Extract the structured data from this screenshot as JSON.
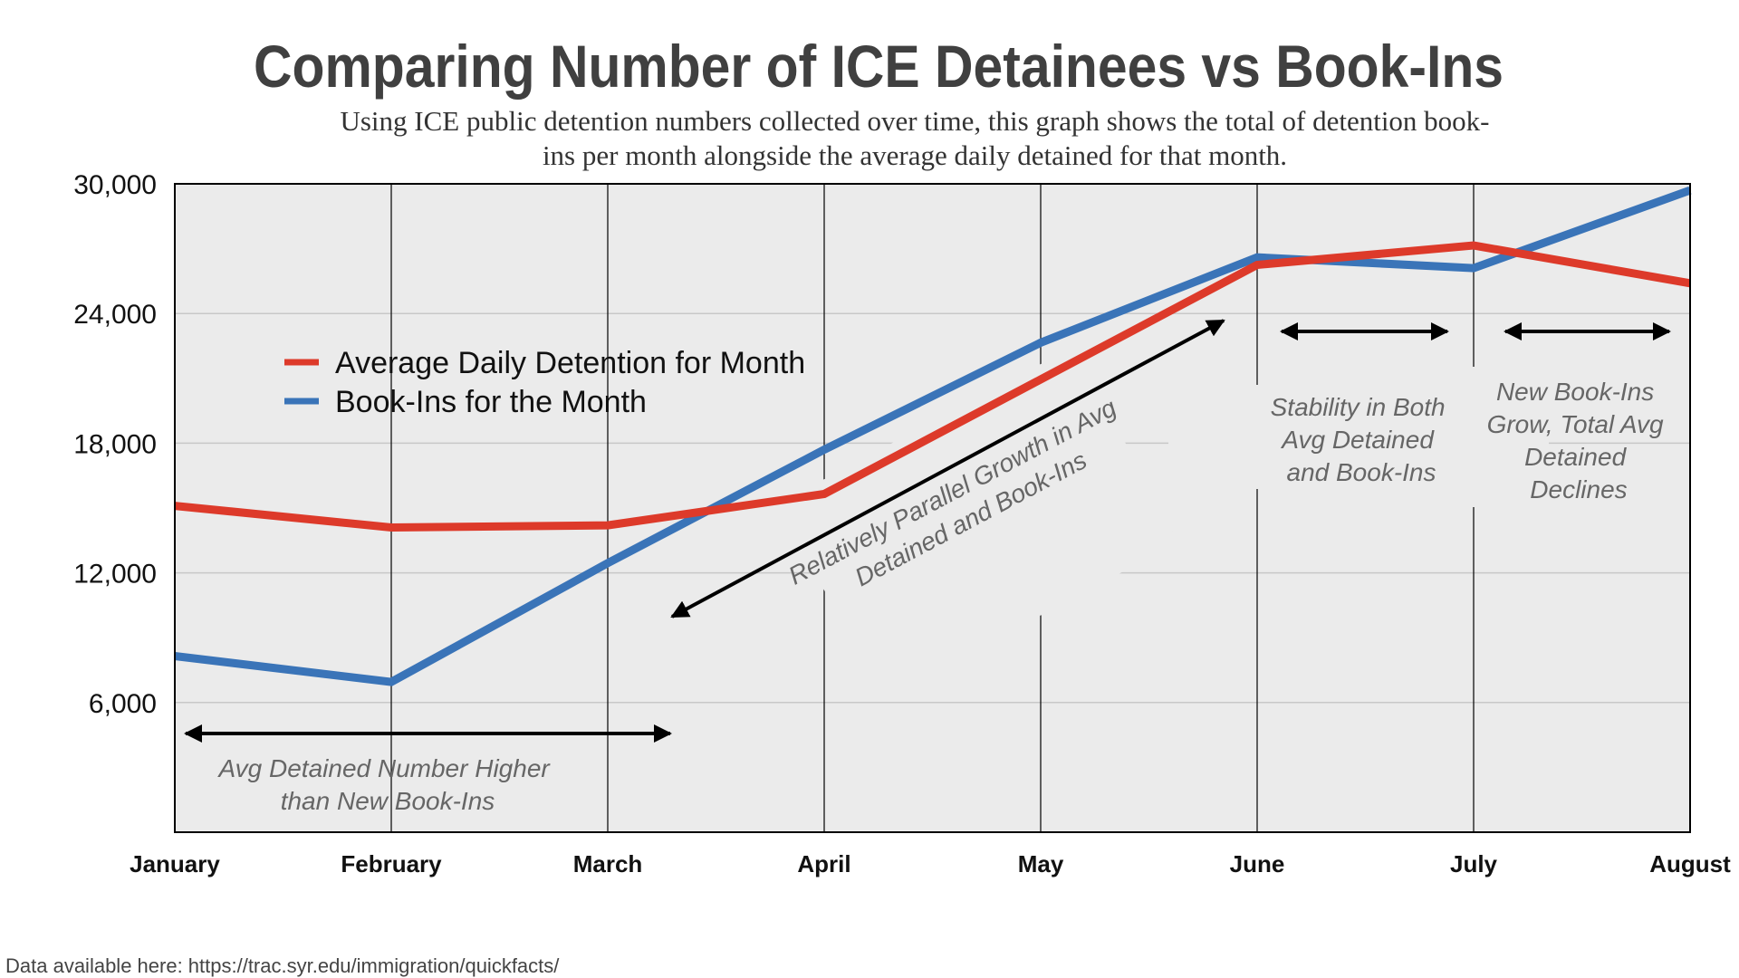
{
  "chart_data": {
    "type": "line",
    "title": "Comparing Number of ICE Detainees vs Book-Ins",
    "subtitle_lines": [
      "Using ICE public detention numbers collected over time, this graph shows the total of detention book-",
      "ins per month alongside the average daily detained for that month."
    ],
    "categories": [
      "January",
      "February",
      "March",
      "April",
      "May",
      "June",
      "July",
      "August"
    ],
    "ylim": [
      0,
      30000
    ],
    "yticks": [
      6000,
      12000,
      18000,
      24000,
      30000
    ],
    "ytick_labels": [
      "6,000",
      "12,000",
      "18,000",
      "24,000",
      "30,000"
    ],
    "grid": true,
    "legend_position": "upper-left",
    "series": [
      {
        "name": "Average Daily Detention for Month",
        "color": "#dd3a2a",
        "values": [
          15100,
          14100,
          14200,
          15650,
          20950,
          26250,
          27150,
          25400
        ]
      },
      {
        "name": "Book-Ins for the Month",
        "color": "#3a74b8",
        "values": [
          8150,
          6950,
          12450,
          17700,
          22650,
          26600,
          26100,
          29700
        ]
      }
    ],
    "annotations": [
      {
        "lines": [
          "Avg Detained Number Higher",
          "than New Book-Ins"
        ]
      },
      {
        "lines": [
          "Relatively Parallel Growth in Avg",
          "Detained and Book-Ins"
        ]
      },
      {
        "lines": [
          "Stability in Both",
          "Avg Detained",
          "and Book-Ins"
        ]
      },
      {
        "lines": [
          "New Book-Ins",
          "Grow, Total Avg",
          "Detained",
          "Declines"
        ]
      }
    ],
    "footer": "Data available here: https://trac.syr.edu/immigration/quickfacts/"
  }
}
